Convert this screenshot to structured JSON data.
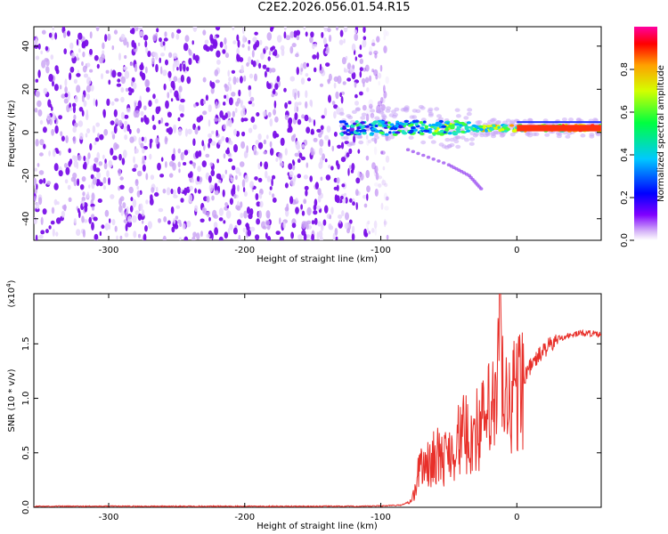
{
  "title": "C2E2.2026.056.01.54.R15",
  "chart_data": [
    {
      "type": "heatmap",
      "name": "spectrogram",
      "xlabel": "Height of straight line (km)",
      "ylabel": "Frequency (Hz)",
      "xlim": [
        -355,
        62
      ],
      "ylim": [
        -50,
        49
      ],
      "xticks": [
        -300,
        -200,
        -100,
        0
      ],
      "yticks": [
        -40,
        -20,
        0,
        20,
        40
      ],
      "noise_region_x": [
        -355,
        -105
      ],
      "signal_band": {
        "x_start": -130,
        "x_end": 62,
        "center_freq": 2
      },
      "secondary_trace": {
        "x": [
          -80,
          -50,
          -35,
          -25
        ],
        "freq": [
          -8,
          -15,
          -20,
          -27
        ]
      },
      "colorbar": {
        "label": "Normalized spectral amplitude",
        "range": [
          0,
          1
        ],
        "ticks": [
          0.0,
          0.2,
          0.4,
          0.6,
          0.8
        ]
      }
    },
    {
      "type": "line",
      "name": "snr",
      "xlabel": "Height of straight line (km)",
      "ylabel": "SNR (10 * v/v)",
      "exponent_label": "(x10",
      "exponent_power": "4",
      "exponent_close": ")",
      "xlim": [
        -355,
        62
      ],
      "ylim": [
        0,
        1.96
      ],
      "xticks": [
        -300,
        -200,
        -100,
        0
      ],
      "yticks": [
        0.0,
        0.5,
        1.0,
        1.5
      ],
      "series": [
        {
          "name": "SNR",
          "color": "#e8302a",
          "x": [
            -355,
            -300,
            -200,
            -110,
            -85,
            -78,
            -75,
            -72,
            -70,
            -65,
            -60,
            -55,
            -50,
            -45,
            -40,
            -35,
            -30,
            -25,
            -20,
            -15,
            -12,
            -10,
            -8,
            -5,
            0,
            5,
            10,
            15,
            20,
            25,
            30,
            35,
            40,
            45,
            50,
            55,
            62
          ],
          "y": [
            0.01,
            0.01,
            0.01,
            0.01,
            0.02,
            0.06,
            0.15,
            0.35,
            0.45,
            0.4,
            0.52,
            0.45,
            0.55,
            0.6,
            0.7,
            0.68,
            0.75,
            0.8,
            0.92,
            0.95,
            1.95,
            1.0,
            0.98,
            1.05,
            1.1,
            1.2,
            1.3,
            1.38,
            1.45,
            1.5,
            1.55,
            1.57,
            1.58,
            1.6,
            1.6,
            1.6,
            1.58
          ]
        }
      ]
    }
  ]
}
